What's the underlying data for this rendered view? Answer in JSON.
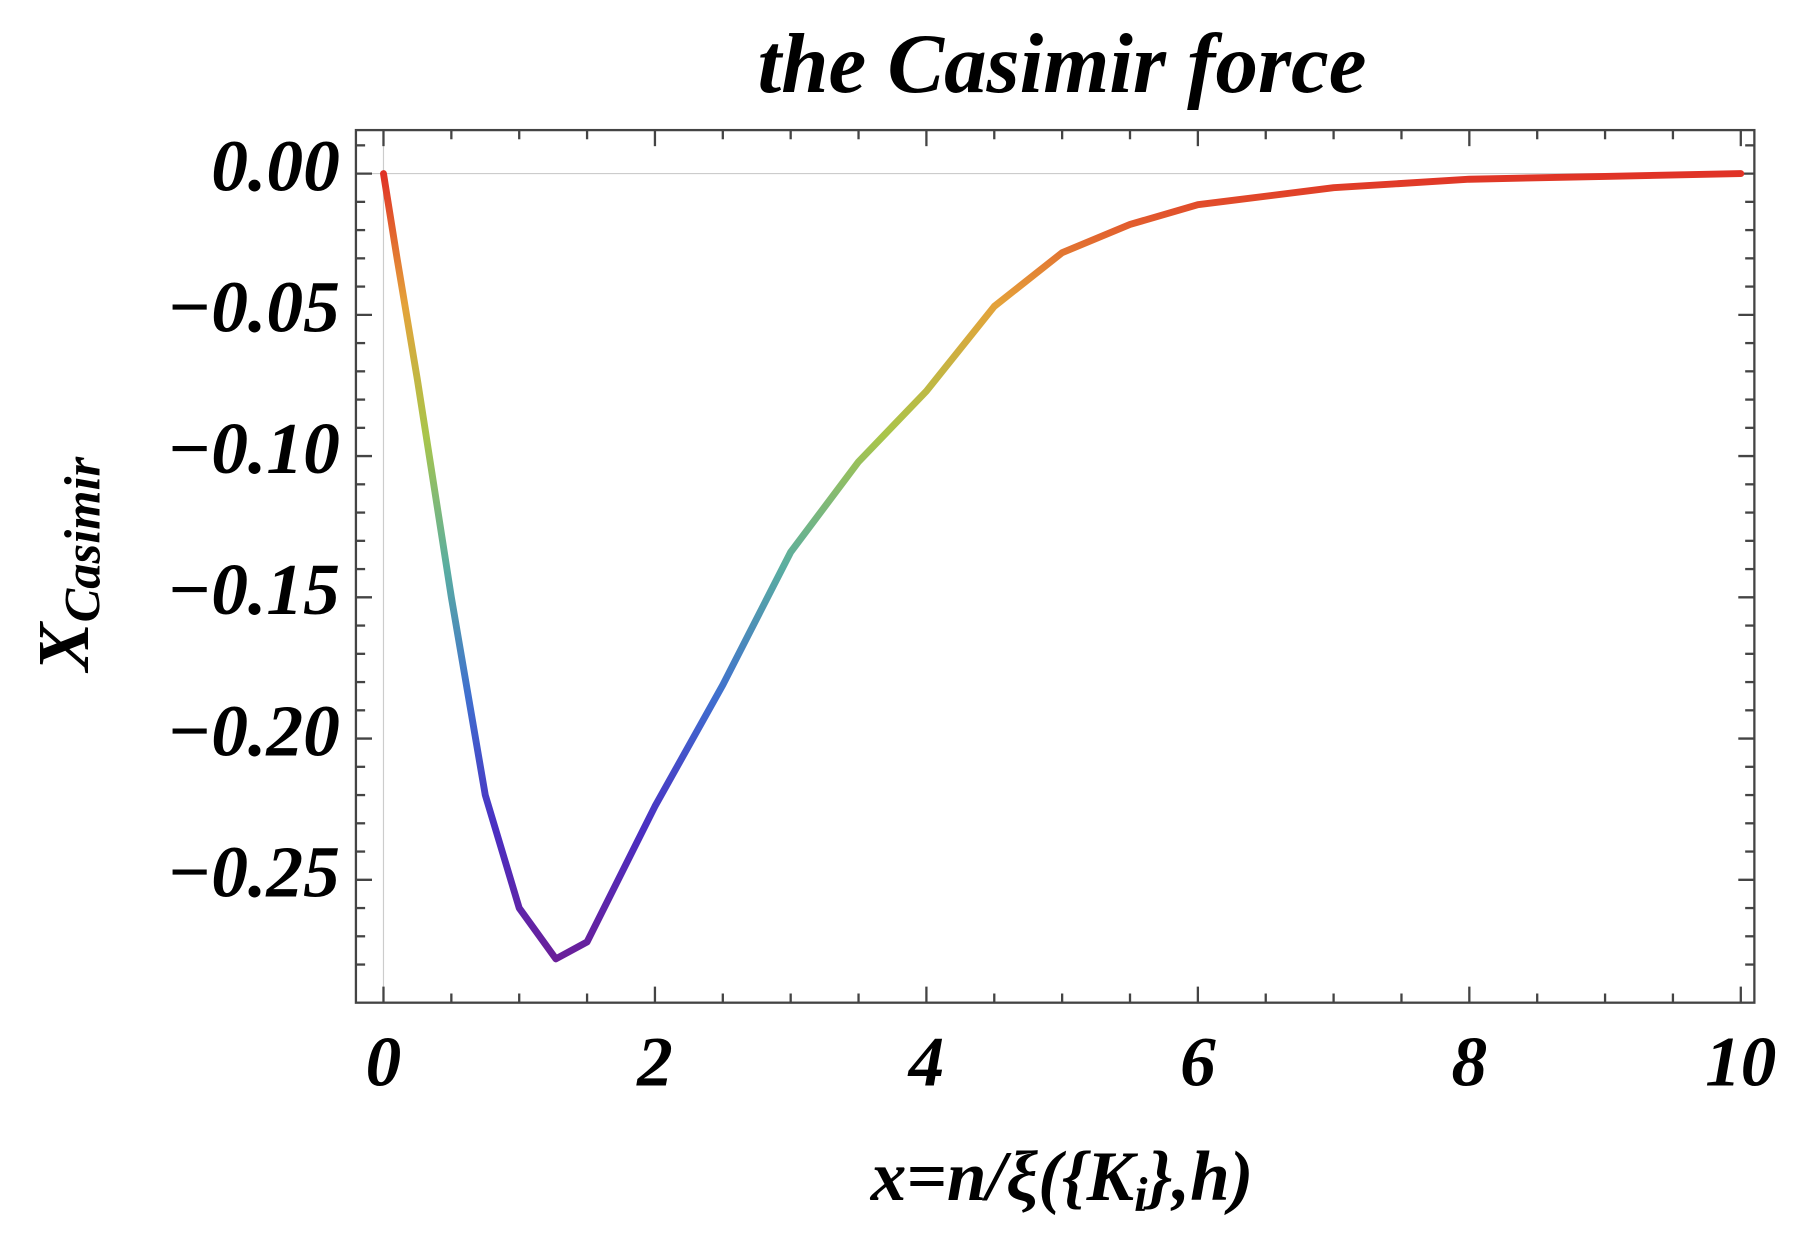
{
  "chart_data": {
    "type": "line",
    "title": "the Casimir force",
    "ylabel": {
      "main": "X",
      "sub": "Casimir"
    },
    "xlabel": {
      "before": "x=n/ξ({K",
      "sub": "i",
      "after": "},h)"
    },
    "x": [
      0,
      0.1,
      0.25,
      0.5,
      0.75,
      1,
      1.27,
      1.5,
      2,
      2.5,
      3,
      3.5,
      4,
      4.5,
      5,
      5.5,
      6,
      7,
      8,
      9,
      10
    ],
    "series": [
      {
        "values": [
          0,
          -0.03,
          -0.073,
          -0.15,
          -0.22,
          -0.26,
          -0.278,
          -0.272,
          -0.224,
          -0.181,
          -0.134,
          -0.102,
          -0.077,
          -0.047,
          -0.028,
          -0.018,
          -0.011,
          -0.005,
          -0.002,
          -0.001,
          0
        ]
      }
    ],
    "color_gradient": [
      "#e03226",
      "#e4a23a",
      "#a9c54a",
      "#5aaea0",
      "#3f6fcf",
      "#4a2fc2",
      "#6a1f9a"
    ],
    "xlim": [
      -0.203,
      10.1
    ],
    "ylim": [
      -0.2935,
      0.0154
    ],
    "xticks": [
      0,
      2,
      4,
      6,
      8,
      10
    ],
    "yticks": [
      {
        "value": 0,
        "label": "0.00"
      },
      {
        "value": -0.05,
        "label": "−0.05"
      },
      {
        "value": -0.1,
        "label": "−0.10"
      },
      {
        "value": -0.15,
        "label": "−0.15"
      },
      {
        "value": -0.2,
        "label": "−0.20"
      },
      {
        "value": -0.25,
        "label": "−0.25"
      }
    ],
    "xminorticks": [
      0.5,
      1,
      1.5,
      2.5,
      3,
      3.5,
      4.5,
      5,
      5.5,
      6.5,
      7,
      7.5,
      8.5,
      9,
      9.5
    ],
    "yminorticks": [
      0.01,
      -0.01,
      -0.02,
      -0.03,
      -0.04,
      -0.06,
      -0.07,
      -0.08,
      -0.09,
      -0.11,
      -0.12,
      -0.13,
      -0.14,
      -0.16,
      -0.17,
      -0.18,
      -0.19,
      -0.21,
      -0.22,
      -0.23,
      -0.24,
      -0.26,
      -0.27,
      -0.28
    ]
  }
}
